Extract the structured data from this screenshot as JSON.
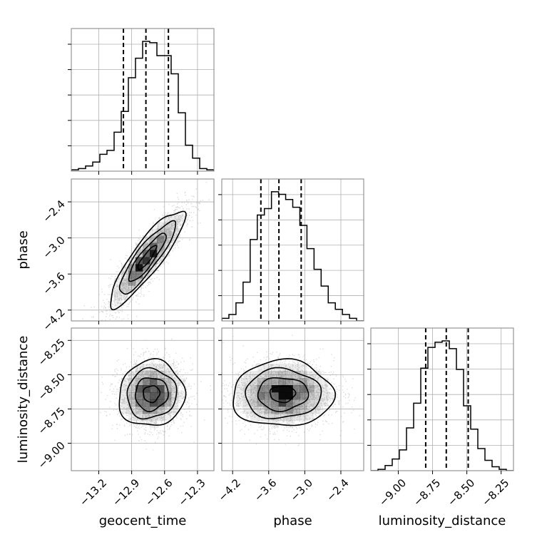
{
  "chart_data": {
    "type": "corner",
    "parameters": [
      "geocent_time",
      "phase",
      "luminosity_distance"
    ],
    "axis_labels": [
      "geocent_time",
      "phase",
      "luminosity_distance"
    ],
    "ranges": {
      "geocent_time": [
        -13.45,
        -12.15
      ],
      "phase": [
        -4.38,
        -2.02
      ],
      "luminosity_distance": [
        -9.2,
        -8.16
      ]
    },
    "ticks": {
      "geocent_time": [
        -13.2,
        -12.9,
        -12.6,
        -12.3
      ],
      "phase": [
        -4.2,
        -3.6,
        -3.0,
        -2.4
      ],
      "luminosity_distance": [
        -9.0,
        -8.75,
        -8.5,
        -8.25
      ]
    },
    "tick_labels": {
      "geocent_time": [
        "−13.2",
        "−12.9",
        "−12.6",
        "−12.3"
      ],
      "phase": [
        "−4.2",
        "−3.6",
        "−3.0",
        "−2.4"
      ],
      "luminosity_distance": [
        "−9.00",
        "−8.75",
        "−8.50",
        "−8.25"
      ]
    },
    "quantile_lines": {
      "geocent_time": [
        -12.975,
        -12.77,
        -12.565
      ],
      "phase": [
        -3.73,
        -3.43,
        -3.06
      ],
      "luminosity_distance": [
        -8.8,
        -8.65,
        -8.49
      ]
    },
    "histograms": {
      "geocent_time": {
        "bins": [
          -13.45,
          -13.385,
          -13.32,
          -13.255,
          -13.19,
          -13.125,
          -13.06,
          -12.995,
          -12.93,
          -12.865,
          -12.8,
          -12.735,
          -12.67,
          -12.605,
          -12.54,
          -12.475,
          -12.41,
          -12.345,
          -12.28,
          -12.215,
          -12.15
        ],
        "counts": [
          0.01,
          0.02,
          0.04,
          0.07,
          0.13,
          0.16,
          0.3,
          0.46,
          0.72,
          0.87,
          1.0,
          0.99,
          0.89,
          0.89,
          0.75,
          0.45,
          0.2,
          0.1,
          0.02,
          0.01
        ]
      },
      "phase": {
        "bins": [
          -4.38,
          -4.262,
          -4.144,
          -4.026,
          -3.908,
          -3.79,
          -3.672,
          -3.554,
          -3.436,
          -3.318,
          -3.2,
          -3.082,
          -2.964,
          -2.846,
          -2.728,
          -2.61,
          -2.492,
          -2.374,
          -2.256,
          -2.138,
          -2.02
        ],
        "counts": [
          0.02,
          0.05,
          0.14,
          0.3,
          0.63,
          0.82,
          0.87,
          1.0,
          0.98,
          0.94,
          0.88,
          0.74,
          0.56,
          0.4,
          0.27,
          0.14,
          0.09,
          0.05,
          0.02,
          0.0
        ]
      },
      "luminosity_distance": {
        "bins": [
          -9.2,
          -9.148,
          -9.096,
          -9.044,
          -8.992,
          -8.94,
          -8.888,
          -8.836,
          -8.784,
          -8.732,
          -8.68,
          -8.628,
          -8.576,
          -8.524,
          -8.472,
          -8.42,
          -8.368,
          -8.316,
          -8.264,
          -8.212,
          -8.16
        ],
        "counts": [
          0.0,
          0.01,
          0.04,
          0.09,
          0.16,
          0.33,
          0.52,
          0.79,
          0.95,
          0.99,
          1.0,
          0.94,
          0.78,
          0.5,
          0.32,
          0.17,
          0.08,
          0.03,
          0.01,
          0.0
        ]
      }
    },
    "joint_2d": [
      {
        "x": "geocent_time",
        "y": "phase",
        "mean": [
          -12.76,
          -3.33
        ],
        "std": [
          0.17,
          0.4
        ],
        "correlation": 0.88
      },
      {
        "x": "geocent_time",
        "y": "luminosity_distance",
        "mean": [
          -12.72,
          -8.64
        ],
        "std": [
          0.15,
          0.12
        ],
        "correlation": 0.05
      },
      {
        "x": "phase",
        "y": "luminosity_distance",
        "mean": [
          -3.37,
          -8.64
        ],
        "std": [
          0.42,
          0.12
        ],
        "correlation": 0.02
      }
    ],
    "contour_levels_sigma": [
      0.5,
      1.0,
      1.5,
      2.0
    ],
    "grid": true,
    "legend": "none",
    "colors": {
      "histogram": "#000000",
      "quantile_line": "#000000",
      "contour": "#000000",
      "density": "#000000",
      "scatter_points": "#b8b8b8",
      "grid": "#b0b0b0",
      "frame": "#808080"
    }
  }
}
